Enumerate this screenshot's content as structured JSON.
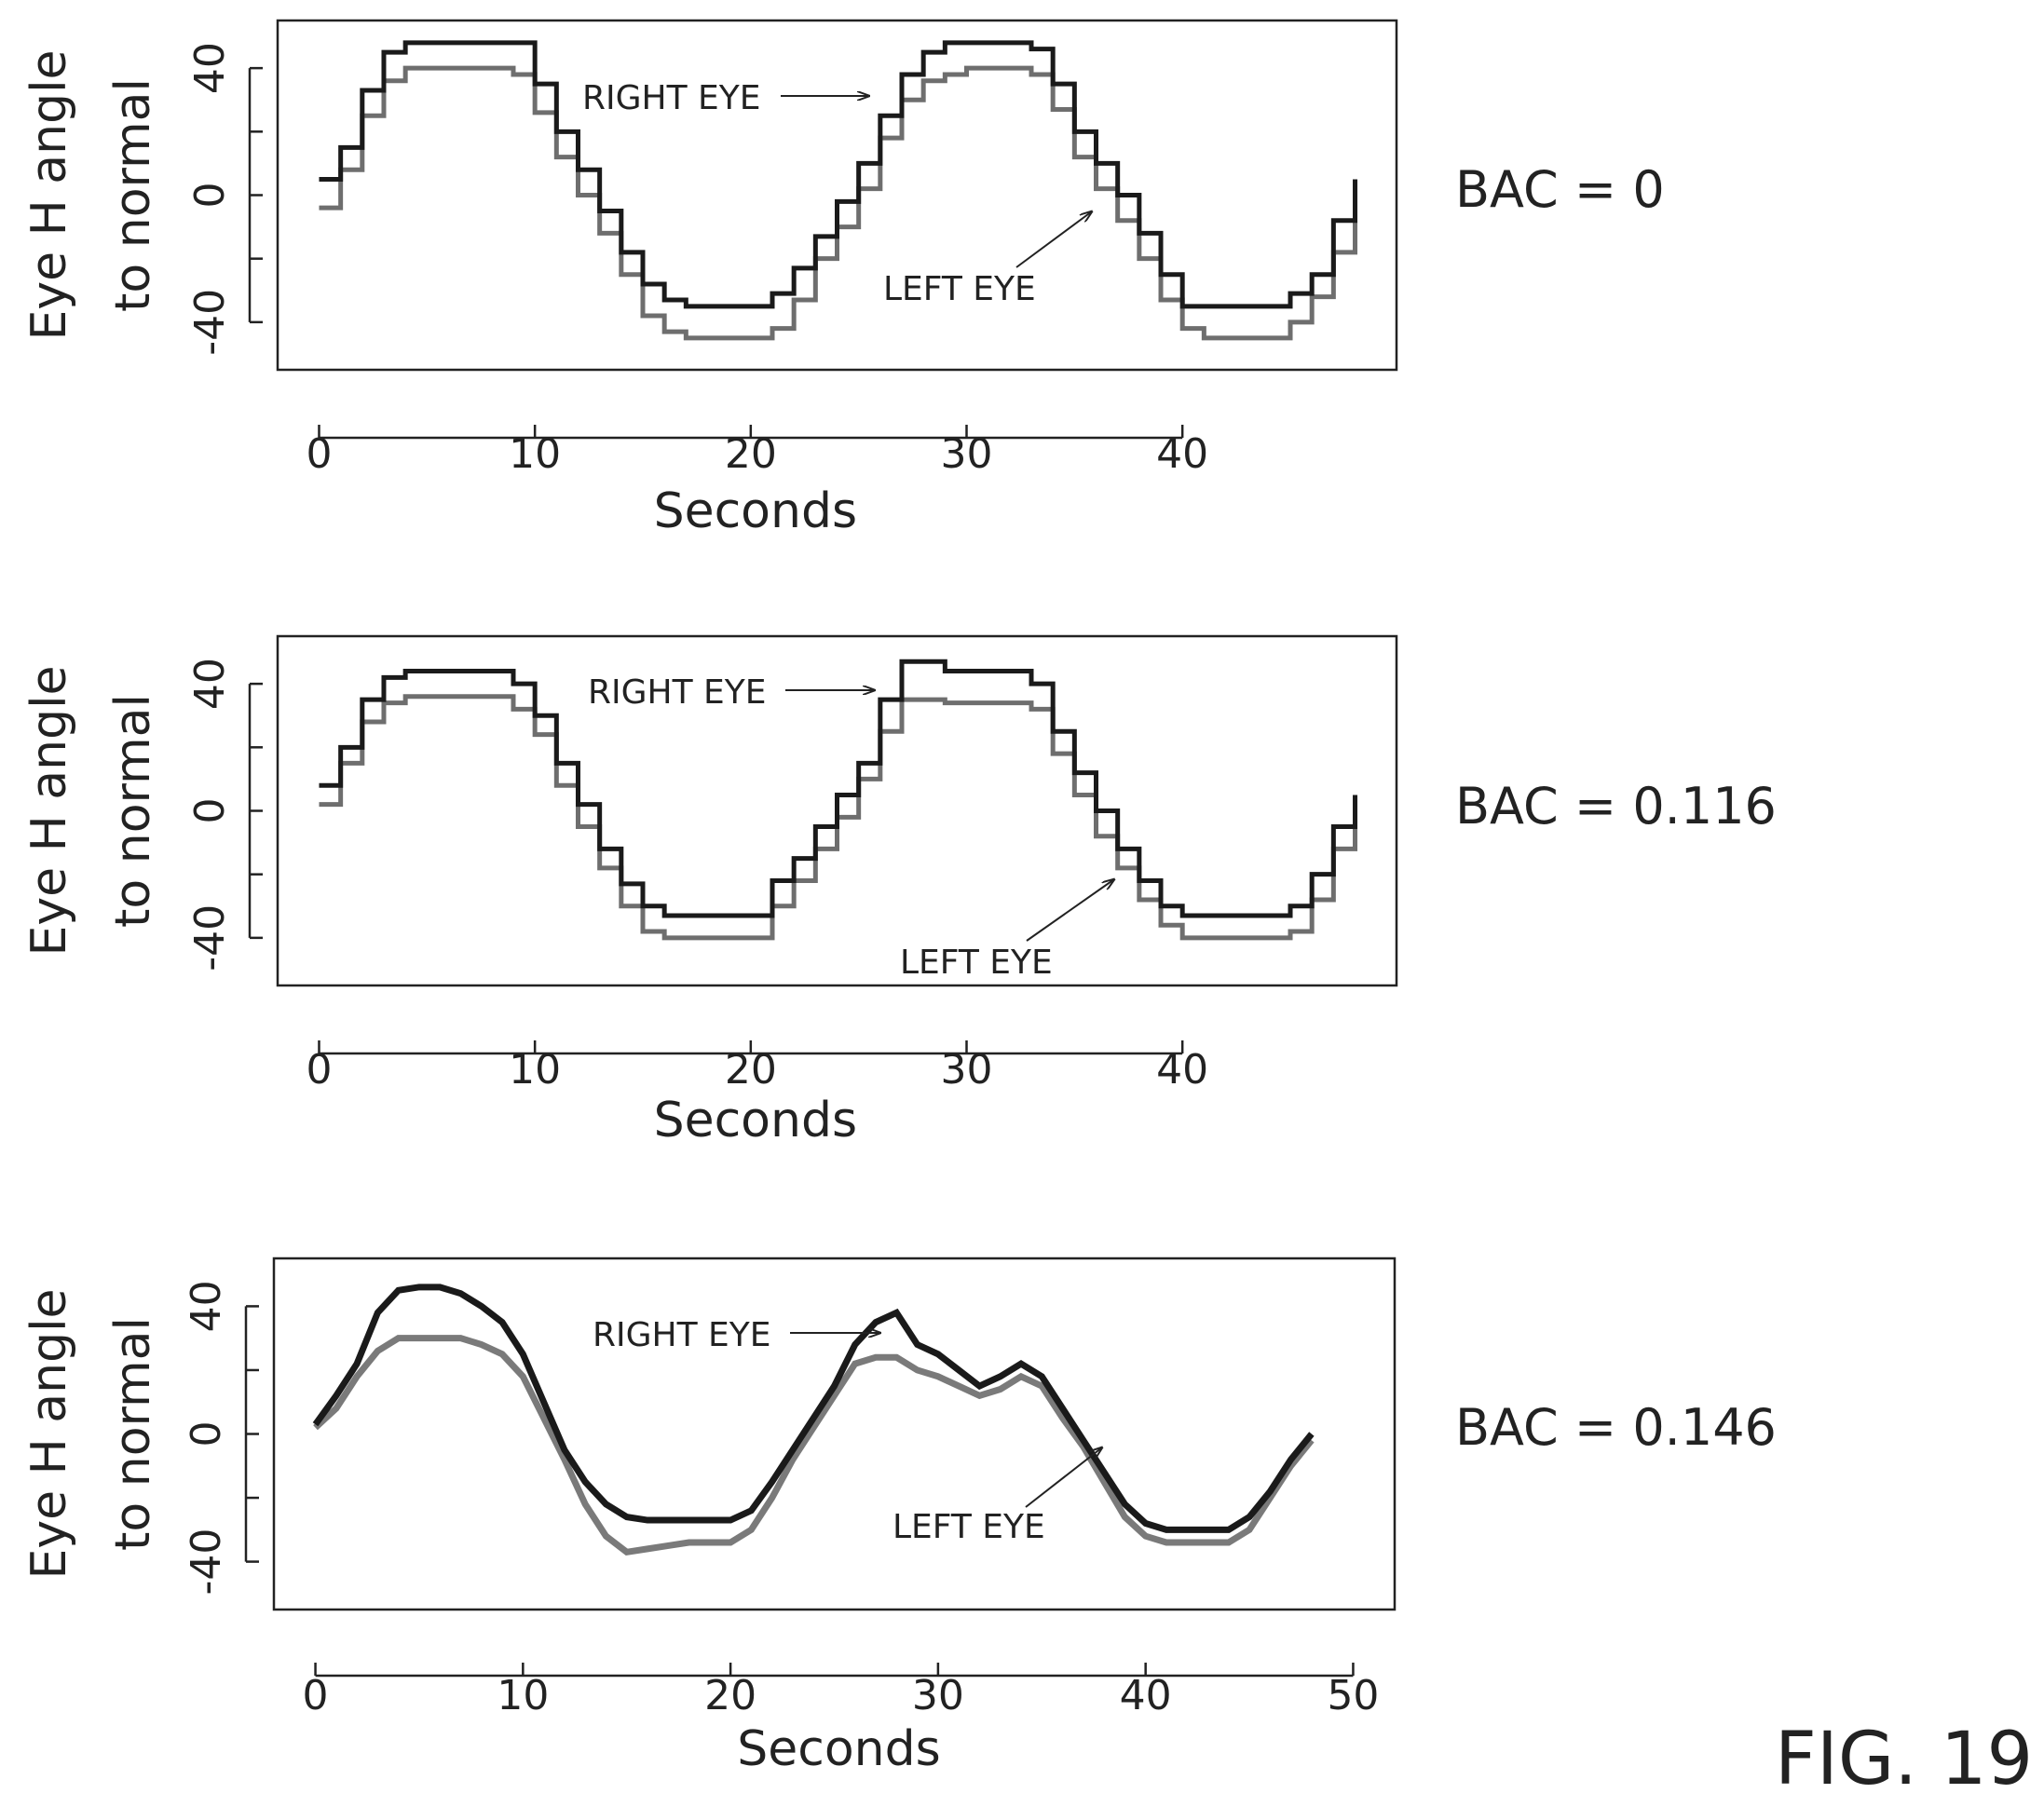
{
  "figure_label": "FIG. 19",
  "chart_data": [
    {
      "type": "line",
      "side_label": "BAC = 0",
      "xlabel": "Seconds",
      "ylabel": [
        "Eye H angle",
        "to normal"
      ],
      "xlim": [
        0,
        48
      ],
      "ylim": [
        -55,
        55
      ],
      "xticks": [
        0,
        10,
        20,
        30,
        40
      ],
      "yticks": [
        -40,
        0,
        40
      ],
      "yticks_minor": [
        -20,
        20
      ],
      "annotations": {
        "right": "RIGHT EYE",
        "left": "LEFT EYE"
      },
      "series": [
        {
          "label": "RIGHT EYE",
          "color": "#1a1a1a",
          "x": [
            0,
            1,
            2,
            3,
            4,
            5,
            6,
            7,
            8,
            9,
            10,
            11,
            12,
            13,
            14,
            15,
            16,
            17,
            18,
            19,
            20,
            21,
            22,
            23,
            24,
            25,
            26,
            27,
            28,
            29,
            30,
            31,
            32,
            33,
            34,
            35,
            36,
            37,
            38,
            39,
            40,
            41,
            42,
            43,
            44,
            45,
            46,
            47,
            48
          ],
          "y": [
            5,
            15,
            33,
            45,
            48,
            48,
            48,
            48,
            48,
            48,
            35,
            20,
            8,
            -5,
            -18,
            -28,
            -33,
            -35,
            -35,
            -35,
            -35,
            -31,
            -23,
            -13,
            -2,
            10,
            25,
            38,
            45,
            48,
            48,
            48,
            48,
            46,
            35,
            20,
            10,
            0,
            -12,
            -25,
            -35,
            -35,
            -35,
            -35,
            -35,
            -31,
            -25,
            -8,
            5
          ]
        },
        {
          "label": "LEFT EYE",
          "color": "#6e6e6e",
          "x": [
            0,
            1,
            2,
            3,
            4,
            5,
            6,
            7,
            8,
            9,
            10,
            11,
            12,
            13,
            14,
            15,
            16,
            17,
            18,
            19,
            20,
            21,
            22,
            23,
            24,
            25,
            26,
            27,
            28,
            29,
            30,
            31,
            32,
            33,
            34,
            35,
            36,
            37,
            38,
            39,
            40,
            41,
            42,
            43,
            44,
            45,
            46,
            47,
            48
          ],
          "y": [
            -4,
            8,
            25,
            36,
            40,
            40,
            40,
            40,
            40,
            38,
            26,
            12,
            0,
            -12,
            -25,
            -38,
            -43,
            -45,
            -45,
            -45,
            -45,
            -42,
            -33,
            -20,
            -10,
            2,
            18,
            30,
            36,
            38,
            40,
            40,
            40,
            38,
            27,
            12,
            2,
            -8,
            -20,
            -33,
            -42,
            -45,
            -45,
            -45,
            -45,
            -40,
            -32,
            -18,
            -8
          ]
        }
      ]
    },
    {
      "type": "line",
      "side_label": "BAC = 0.116",
      "xlabel": "Seconds",
      "ylabel": [
        "Eye H angle",
        "to normal"
      ],
      "xlim": [
        0,
        48
      ],
      "ylim": [
        -55,
        55
      ],
      "xticks": [
        0,
        10,
        20,
        30,
        40
      ],
      "yticks": [
        -40,
        0,
        40
      ],
      "yticks_minor": [
        -20,
        20
      ],
      "annotations": {
        "right": "RIGHT EYE",
        "left": "LEFT EYE"
      },
      "series": [
        {
          "label": "RIGHT EYE",
          "color": "#1a1a1a",
          "x": [
            0,
            1,
            2,
            3,
            4,
            5,
            6,
            7,
            8,
            9,
            10,
            11,
            12,
            13,
            14,
            15,
            16,
            17,
            18,
            19,
            20,
            21,
            22,
            23,
            24,
            25,
            26,
            27,
            28,
            29,
            30,
            31,
            32,
            33,
            34,
            35,
            36,
            37,
            38,
            39,
            40,
            41,
            42,
            43,
            44,
            45,
            46,
            47,
            48
          ],
          "y": [
            8,
            20,
            35,
            42,
            44,
            44,
            44,
            44,
            44,
            40,
            30,
            15,
            2,
            -12,
            -23,
            -30,
            -33,
            -33,
            -33,
            -33,
            -33,
            -22,
            -15,
            -5,
            5,
            15,
            35,
            47,
            47,
            44,
            44,
            44,
            44,
            40,
            25,
            12,
            0,
            -12,
            -22,
            -30,
            -33,
            -33,
            -33,
            -33,
            -33,
            -30,
            -20,
            -5,
            5
          ]
        },
        {
          "label": "LEFT EYE",
          "color": "#6e6e6e",
          "x": [
            0,
            1,
            2,
            3,
            4,
            5,
            6,
            7,
            8,
            9,
            10,
            11,
            12,
            13,
            14,
            15,
            16,
            17,
            18,
            19,
            20,
            21,
            22,
            23,
            24,
            25,
            26,
            27,
            28,
            29,
            30,
            31,
            32,
            33,
            34,
            35,
            36,
            37,
            38,
            39,
            40,
            41,
            42,
            43,
            44,
            45,
            46,
            47,
            48
          ],
          "y": [
            2,
            15,
            28,
            34,
            36,
            36,
            36,
            36,
            36,
            32,
            24,
            8,
            -5,
            -18,
            -30,
            -38,
            -40,
            -40,
            -40,
            -40,
            -40,
            -30,
            -22,
            -12,
            -2,
            10,
            25,
            35,
            35,
            34,
            34,
            34,
            34,
            32,
            18,
            5,
            -8,
            -18,
            -28,
            -36,
            -40,
            -40,
            -40,
            -40,
            -40,
            -38,
            -28,
            -12,
            -5
          ]
        }
      ]
    },
    {
      "type": "line",
      "side_label": "BAC = 0.146",
      "xlabel": "Seconds",
      "ylabel": [
        "Eye H angle",
        "to normal"
      ],
      "xlim": [
        0,
        50
      ],
      "ylim": [
        -55,
        55
      ],
      "xticks": [
        0,
        10,
        20,
        30,
        40,
        50
      ],
      "yticks": [
        -40,
        0,
        40
      ],
      "yticks_minor": [
        -20,
        20
      ],
      "annotations": {
        "right": "RIGHT EYE",
        "left": "LEFT EYE"
      },
      "series": [
        {
          "label": "RIGHT EYE",
          "color": "#1a1a1a",
          "x": [
            0,
            1,
            2,
            3,
            4,
            5,
            6,
            7,
            8,
            9,
            10,
            11,
            12,
            13,
            14,
            15,
            16,
            17,
            18,
            19,
            20,
            21,
            22,
            23,
            24,
            25,
            26,
            27,
            28,
            29,
            30,
            31,
            32,
            33,
            34,
            35,
            36,
            37,
            38,
            39,
            40,
            41,
            42,
            43,
            44,
            45,
            46,
            47,
            48
          ],
          "y": [
            3,
            12,
            22,
            38,
            45,
            46,
            46,
            44,
            40,
            35,
            25,
            10,
            -5,
            -15,
            -22,
            -26,
            -27,
            -27,
            -27,
            -27,
            -27,
            -24,
            -15,
            -5,
            5,
            15,
            28,
            35,
            38,
            28,
            25,
            20,
            15,
            18,
            22,
            18,
            8,
            -2,
            -12,
            -22,
            -28,
            -30,
            -30,
            -30,
            -30,
            -26,
            -18,
            -8,
            0
          ]
        },
        {
          "label": "LEFT EYE",
          "color": "#7a7a7a",
          "x": [
            0,
            1,
            2,
            3,
            4,
            5,
            6,
            7,
            8,
            9,
            10,
            11,
            12,
            13,
            14,
            15,
            16,
            17,
            18,
            19,
            20,
            21,
            22,
            23,
            24,
            25,
            26,
            27,
            28,
            29,
            30,
            31,
            32,
            33,
            34,
            35,
            36,
            37,
            38,
            39,
            40,
            41,
            42,
            43,
            44,
            45,
            46,
            47,
            48
          ],
          "y": [
            2,
            8,
            18,
            26,
            30,
            30,
            30,
            30,
            28,
            25,
            18,
            5,
            -8,
            -22,
            -32,
            -37,
            -36,
            -35,
            -34,
            -34,
            -34,
            -30,
            -20,
            -8,
            2,
            12,
            22,
            24,
            24,
            20,
            18,
            15,
            12,
            14,
            18,
            15,
            5,
            -4,
            -15,
            -26,
            -32,
            -34,
            -34,
            -34,
            -34,
            -30,
            -20,
            -10,
            -2
          ]
        }
      ]
    }
  ]
}
